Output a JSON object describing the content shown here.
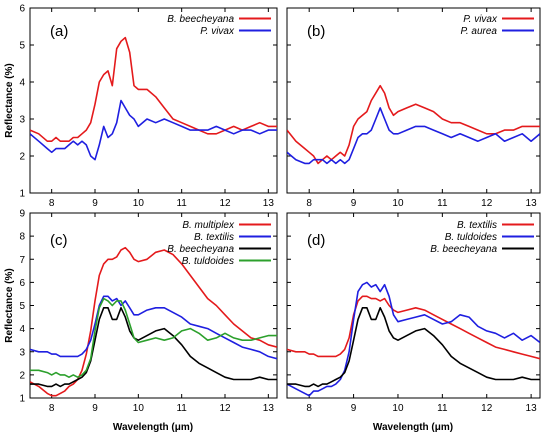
{
  "chart_data": [
    {
      "type": "line",
      "panel_label": "(a)",
      "xlabel": "",
      "ylabel": "Reflectance (%)",
      "xlim": [
        7.5,
        13.2
      ],
      "ylim": [
        1,
        6
      ],
      "xticks": [
        8,
        9,
        10,
        11,
        12,
        13
      ],
      "yticks": [
        1,
        2,
        3,
        4,
        5,
        6
      ],
      "legend_position": "top-right",
      "series": [
        {
          "name": "B. beecheyana",
          "color": "#e41a1c",
          "x": [
            7.5,
            7.7,
            7.9,
            8.0,
            8.1,
            8.2,
            8.3,
            8.4,
            8.5,
            8.6,
            8.7,
            8.8,
            8.9,
            9.0,
            9.1,
            9.2,
            9.3,
            9.4,
            9.5,
            9.6,
            9.7,
            9.8,
            9.9,
            10.0,
            10.2,
            10.4,
            10.6,
            10.8,
            11.0,
            11.2,
            11.4,
            11.6,
            11.8,
            12.0,
            12.2,
            12.4,
            12.6,
            12.8,
            13.0,
            13.2
          ],
          "y": [
            2.7,
            2.6,
            2.4,
            2.4,
            2.5,
            2.4,
            2.4,
            2.4,
            2.5,
            2.5,
            2.6,
            2.7,
            2.9,
            3.4,
            4.0,
            4.2,
            4.3,
            3.9,
            4.9,
            5.1,
            5.2,
            4.8,
            3.9,
            3.8,
            3.8,
            3.6,
            3.3,
            3.0,
            2.9,
            2.8,
            2.7,
            2.6,
            2.6,
            2.7,
            2.8,
            2.7,
            2.8,
            2.9,
            2.8,
            2.8
          ]
        },
        {
          "name": "P. vivax",
          "color": "#1f1fe0",
          "x": [
            7.5,
            7.7,
            7.9,
            8.0,
            8.1,
            8.2,
            8.3,
            8.4,
            8.5,
            8.6,
            8.7,
            8.8,
            8.9,
            9.0,
            9.1,
            9.2,
            9.3,
            9.4,
            9.5,
            9.6,
            9.7,
            9.8,
            9.9,
            10.0,
            10.2,
            10.4,
            10.6,
            10.8,
            11.0,
            11.2,
            11.4,
            11.6,
            11.8,
            12.0,
            12.2,
            12.4,
            12.6,
            12.8,
            13.0,
            13.2
          ],
          "y": [
            2.6,
            2.4,
            2.2,
            2.1,
            2.2,
            2.2,
            2.2,
            2.3,
            2.4,
            2.3,
            2.4,
            2.3,
            2.0,
            1.9,
            2.3,
            2.8,
            2.5,
            2.6,
            2.9,
            3.5,
            3.3,
            3.1,
            3.0,
            2.8,
            3.0,
            2.9,
            3.0,
            2.9,
            2.8,
            2.7,
            2.7,
            2.7,
            2.8,
            2.7,
            2.6,
            2.7,
            2.7,
            2.6,
            2.7,
            2.7
          ]
        }
      ]
    },
    {
      "type": "line",
      "panel_label": "(b)",
      "xlabel": "",
      "ylabel": "",
      "xlim": [
        7.5,
        13.2
      ],
      "ylim": [
        1,
        6
      ],
      "xticks": [
        8,
        9,
        10,
        11,
        12,
        13
      ],
      "yticks": [
        1,
        2,
        3,
        4,
        5,
        6
      ],
      "legend_position": "top-right",
      "series": [
        {
          "name": "P. vivax",
          "color": "#e41a1c",
          "x": [
            7.5,
            7.7,
            7.9,
            8.0,
            8.1,
            8.2,
            8.3,
            8.4,
            8.5,
            8.6,
            8.7,
            8.8,
            8.9,
            9.0,
            9.1,
            9.2,
            9.3,
            9.4,
            9.5,
            9.6,
            9.7,
            9.8,
            9.9,
            10.0,
            10.2,
            10.4,
            10.6,
            10.8,
            11.0,
            11.2,
            11.4,
            11.6,
            11.8,
            12.0,
            12.2,
            12.4,
            12.6,
            12.8,
            13.0,
            13.2
          ],
          "y": [
            2.7,
            2.4,
            2.2,
            2.1,
            2.0,
            1.8,
            1.9,
            2.0,
            1.9,
            2.0,
            2.1,
            2.0,
            2.3,
            2.8,
            3.0,
            3.1,
            3.2,
            3.5,
            3.7,
            3.9,
            3.7,
            3.3,
            3.1,
            3.2,
            3.3,
            3.4,
            3.3,
            3.2,
            3.0,
            2.9,
            2.9,
            2.8,
            2.7,
            2.6,
            2.6,
            2.7,
            2.7,
            2.8,
            2.8,
            2.8
          ]
        },
        {
          "name": "P. aurea",
          "color": "#1f1fe0",
          "x": [
            7.5,
            7.7,
            7.9,
            8.0,
            8.1,
            8.2,
            8.3,
            8.4,
            8.5,
            8.6,
            8.7,
            8.8,
            8.9,
            9.0,
            9.1,
            9.2,
            9.3,
            9.4,
            9.5,
            9.6,
            9.7,
            9.8,
            9.9,
            10.0,
            10.2,
            10.4,
            10.6,
            10.8,
            11.0,
            11.2,
            11.4,
            11.6,
            11.8,
            12.0,
            12.2,
            12.4,
            12.6,
            12.8,
            13.0,
            13.2
          ],
          "y": [
            2.1,
            1.9,
            1.8,
            1.8,
            1.9,
            1.9,
            1.9,
            1.8,
            1.9,
            1.8,
            1.9,
            1.8,
            1.9,
            2.2,
            2.5,
            2.6,
            2.6,
            2.7,
            3.0,
            3.3,
            3.0,
            2.7,
            2.6,
            2.6,
            2.7,
            2.8,
            2.8,
            2.7,
            2.6,
            2.5,
            2.6,
            2.5,
            2.4,
            2.5,
            2.6,
            2.4,
            2.5,
            2.6,
            2.4,
            2.6
          ]
        }
      ]
    },
    {
      "type": "line",
      "panel_label": "(c)",
      "xlabel": "Wavelength (μm)",
      "ylabel": "Reflectance (%)",
      "xlim": [
        7.5,
        13.2
      ],
      "ylim": [
        1,
        9
      ],
      "xticks": [
        8,
        9,
        10,
        11,
        12,
        13
      ],
      "yticks": [
        1,
        2,
        3,
        4,
        5,
        6,
        7,
        8,
        9
      ],
      "legend_position": "top-right",
      "series": [
        {
          "name": "B. multiplex",
          "color": "#e41a1c",
          "x": [
            7.5,
            7.7,
            7.9,
            8.0,
            8.1,
            8.2,
            8.3,
            8.4,
            8.5,
            8.6,
            8.7,
            8.8,
            8.9,
            9.0,
            9.1,
            9.2,
            9.3,
            9.4,
            9.5,
            9.6,
            9.7,
            9.8,
            9.9,
            10.0,
            10.2,
            10.4,
            10.6,
            10.8,
            11.0,
            11.2,
            11.4,
            11.6,
            11.8,
            12.0,
            12.2,
            12.4,
            12.6,
            12.8,
            13.0,
            13.2
          ],
          "y": [
            1.7,
            1.5,
            1.2,
            1.1,
            1.1,
            1.2,
            1.3,
            1.5,
            1.6,
            1.8,
            2.2,
            2.9,
            3.9,
            5.2,
            6.3,
            6.8,
            7.0,
            7.0,
            7.1,
            7.4,
            7.5,
            7.3,
            7.0,
            6.9,
            7.0,
            7.3,
            7.4,
            7.2,
            6.8,
            6.3,
            5.8,
            5.3,
            5.0,
            4.6,
            4.2,
            3.9,
            3.6,
            3.5,
            3.3,
            3.2
          ]
        },
        {
          "name": "B. textilis",
          "color": "#1f1fe0",
          "x": [
            7.5,
            7.7,
            7.9,
            8.0,
            8.1,
            8.2,
            8.3,
            8.4,
            8.5,
            8.6,
            8.7,
            8.8,
            8.9,
            9.0,
            9.1,
            9.2,
            9.3,
            9.4,
            9.5,
            9.6,
            9.7,
            9.8,
            9.9,
            10.0,
            10.2,
            10.4,
            10.6,
            10.8,
            11.0,
            11.2,
            11.4,
            11.6,
            11.8,
            12.0,
            12.2,
            12.4,
            12.6,
            12.8,
            13.0,
            13.2
          ],
          "y": [
            3.1,
            3.0,
            3.0,
            2.9,
            2.9,
            2.8,
            2.8,
            2.8,
            2.8,
            2.8,
            2.9,
            3.1,
            3.5,
            4.2,
            5.0,
            5.4,
            5.4,
            5.2,
            5.3,
            5.0,
            5.2,
            4.9,
            4.6,
            4.6,
            4.8,
            4.9,
            4.9,
            4.7,
            4.5,
            4.2,
            4.1,
            4.0,
            3.8,
            3.6,
            3.4,
            3.2,
            3.1,
            3.0,
            2.8,
            2.7
          ]
        },
        {
          "name": "B. beecheyana",
          "color": "#000000",
          "x": [
            7.5,
            7.7,
            7.9,
            8.0,
            8.1,
            8.2,
            8.3,
            8.4,
            8.5,
            8.6,
            8.7,
            8.8,
            8.9,
            9.0,
            9.1,
            9.2,
            9.3,
            9.4,
            9.5,
            9.6,
            9.7,
            9.8,
            9.9,
            10.0,
            10.2,
            10.4,
            10.6,
            10.8,
            11.0,
            11.2,
            11.4,
            11.6,
            11.8,
            12.0,
            12.2,
            12.4,
            12.6,
            12.8,
            13.0,
            13.2
          ],
          "y": [
            1.6,
            1.6,
            1.5,
            1.5,
            1.6,
            1.5,
            1.6,
            1.6,
            1.7,
            1.8,
            1.9,
            2.1,
            2.6,
            3.5,
            4.4,
            4.9,
            4.9,
            4.4,
            4.4,
            4.9,
            4.5,
            3.9,
            3.6,
            3.5,
            3.7,
            3.9,
            4.0,
            3.7,
            3.3,
            2.8,
            2.5,
            2.3,
            2.1,
            1.9,
            1.8,
            1.8,
            1.8,
            1.9,
            1.8,
            1.8
          ]
        },
        {
          "name": "B. tuldoides",
          "color": "#2ca02c",
          "x": [
            7.5,
            7.7,
            7.9,
            8.0,
            8.1,
            8.2,
            8.3,
            8.4,
            8.5,
            8.6,
            8.7,
            8.8,
            8.9,
            9.0,
            9.1,
            9.2,
            9.3,
            9.4,
            9.5,
            9.6,
            9.7,
            9.8,
            9.9,
            10.0,
            10.2,
            10.4,
            10.6,
            10.8,
            11.0,
            11.2,
            11.4,
            11.6,
            11.8,
            12.0,
            12.2,
            12.4,
            12.6,
            12.8,
            13.0,
            13.2
          ],
          "y": [
            2.2,
            2.2,
            2.1,
            2.0,
            2.1,
            2.0,
            2.0,
            1.9,
            2.0,
            1.9,
            2.0,
            2.2,
            2.7,
            3.9,
            4.9,
            5.3,
            5.2,
            5.0,
            5.2,
            5.2,
            4.8,
            4.2,
            3.6,
            3.4,
            3.5,
            3.6,
            3.5,
            3.6,
            3.9,
            4.0,
            3.8,
            3.5,
            3.6,
            3.8,
            3.6,
            3.5,
            3.5,
            3.6,
            3.7,
            3.7
          ]
        }
      ]
    },
    {
      "type": "line",
      "panel_label": "(d)",
      "xlabel": "Wavelength (μm)",
      "ylabel": "",
      "xlim": [
        7.5,
        13.2
      ],
      "ylim": [
        1,
        9
      ],
      "xticks": [
        8,
        9,
        10,
        11,
        12,
        13
      ],
      "yticks": [
        1,
        2,
        3,
        4,
        5,
        6,
        7,
        8,
        9
      ],
      "legend_position": "top-right",
      "series": [
        {
          "name": "B. textilis",
          "color": "#e41a1c",
          "x": [
            7.5,
            7.7,
            7.9,
            8.0,
            8.1,
            8.2,
            8.3,
            8.4,
            8.5,
            8.6,
            8.7,
            8.8,
            8.9,
            9.0,
            9.1,
            9.2,
            9.3,
            9.4,
            9.5,
            9.6,
            9.7,
            9.8,
            9.9,
            10.0,
            10.2,
            10.4,
            10.6,
            10.8,
            11.0,
            11.2,
            11.4,
            11.6,
            11.8,
            12.0,
            12.2,
            12.4,
            12.6,
            12.8,
            13.0,
            13.2
          ],
          "y": [
            3.1,
            3.0,
            3.0,
            2.9,
            2.9,
            2.8,
            2.8,
            2.8,
            2.8,
            2.8,
            2.9,
            3.1,
            3.6,
            4.6,
            5.2,
            5.4,
            5.4,
            5.3,
            5.3,
            5.2,
            5.3,
            5.0,
            4.8,
            4.7,
            4.8,
            4.9,
            4.8,
            4.6,
            4.4,
            4.2,
            4.0,
            3.8,
            3.6,
            3.4,
            3.2,
            3.1,
            3.0,
            2.9,
            2.8,
            2.7
          ]
        },
        {
          "name": "B. tuldoides",
          "color": "#1f1fe0",
          "x": [
            7.5,
            7.7,
            7.9,
            8.0,
            8.1,
            8.2,
            8.3,
            8.4,
            8.5,
            8.6,
            8.7,
            8.8,
            8.9,
            9.0,
            9.1,
            9.2,
            9.3,
            9.4,
            9.5,
            9.6,
            9.7,
            9.8,
            9.9,
            10.0,
            10.2,
            10.4,
            10.6,
            10.8,
            11.0,
            11.2,
            11.4,
            11.6,
            11.8,
            12.0,
            12.2,
            12.4,
            12.6,
            12.8,
            13.0,
            13.2
          ],
          "y": [
            1.6,
            1.4,
            1.2,
            1.1,
            1.3,
            1.3,
            1.4,
            1.5,
            1.5,
            1.6,
            1.8,
            2.2,
            3.0,
            4.4,
            5.6,
            5.9,
            6.0,
            5.8,
            5.9,
            5.6,
            5.9,
            5.4,
            4.6,
            4.3,
            4.4,
            4.5,
            4.6,
            4.4,
            4.2,
            4.3,
            4.6,
            4.5,
            4.1,
            3.9,
            3.8,
            3.6,
            3.8,
            3.5,
            3.7,
            3.4
          ]
        },
        {
          "name": "B. beecheyana",
          "color": "#000000",
          "x": [
            7.5,
            7.7,
            7.9,
            8.0,
            8.1,
            8.2,
            8.3,
            8.4,
            8.5,
            8.6,
            8.7,
            8.8,
            8.9,
            9.0,
            9.1,
            9.2,
            9.3,
            9.4,
            9.5,
            9.6,
            9.7,
            9.8,
            9.9,
            10.0,
            10.2,
            10.4,
            10.6,
            10.8,
            11.0,
            11.2,
            11.4,
            11.6,
            11.8,
            12.0,
            12.2,
            12.4,
            12.6,
            12.8,
            13.0,
            13.2
          ],
          "y": [
            1.6,
            1.6,
            1.5,
            1.5,
            1.6,
            1.5,
            1.6,
            1.6,
            1.7,
            1.8,
            1.9,
            2.1,
            2.6,
            3.5,
            4.4,
            4.9,
            4.9,
            4.4,
            4.4,
            4.9,
            4.5,
            3.9,
            3.6,
            3.5,
            3.7,
            3.9,
            4.0,
            3.7,
            3.3,
            2.8,
            2.5,
            2.3,
            2.1,
            1.9,
            1.8,
            1.8,
            1.8,
            1.9,
            1.8,
            1.8
          ]
        }
      ]
    }
  ]
}
